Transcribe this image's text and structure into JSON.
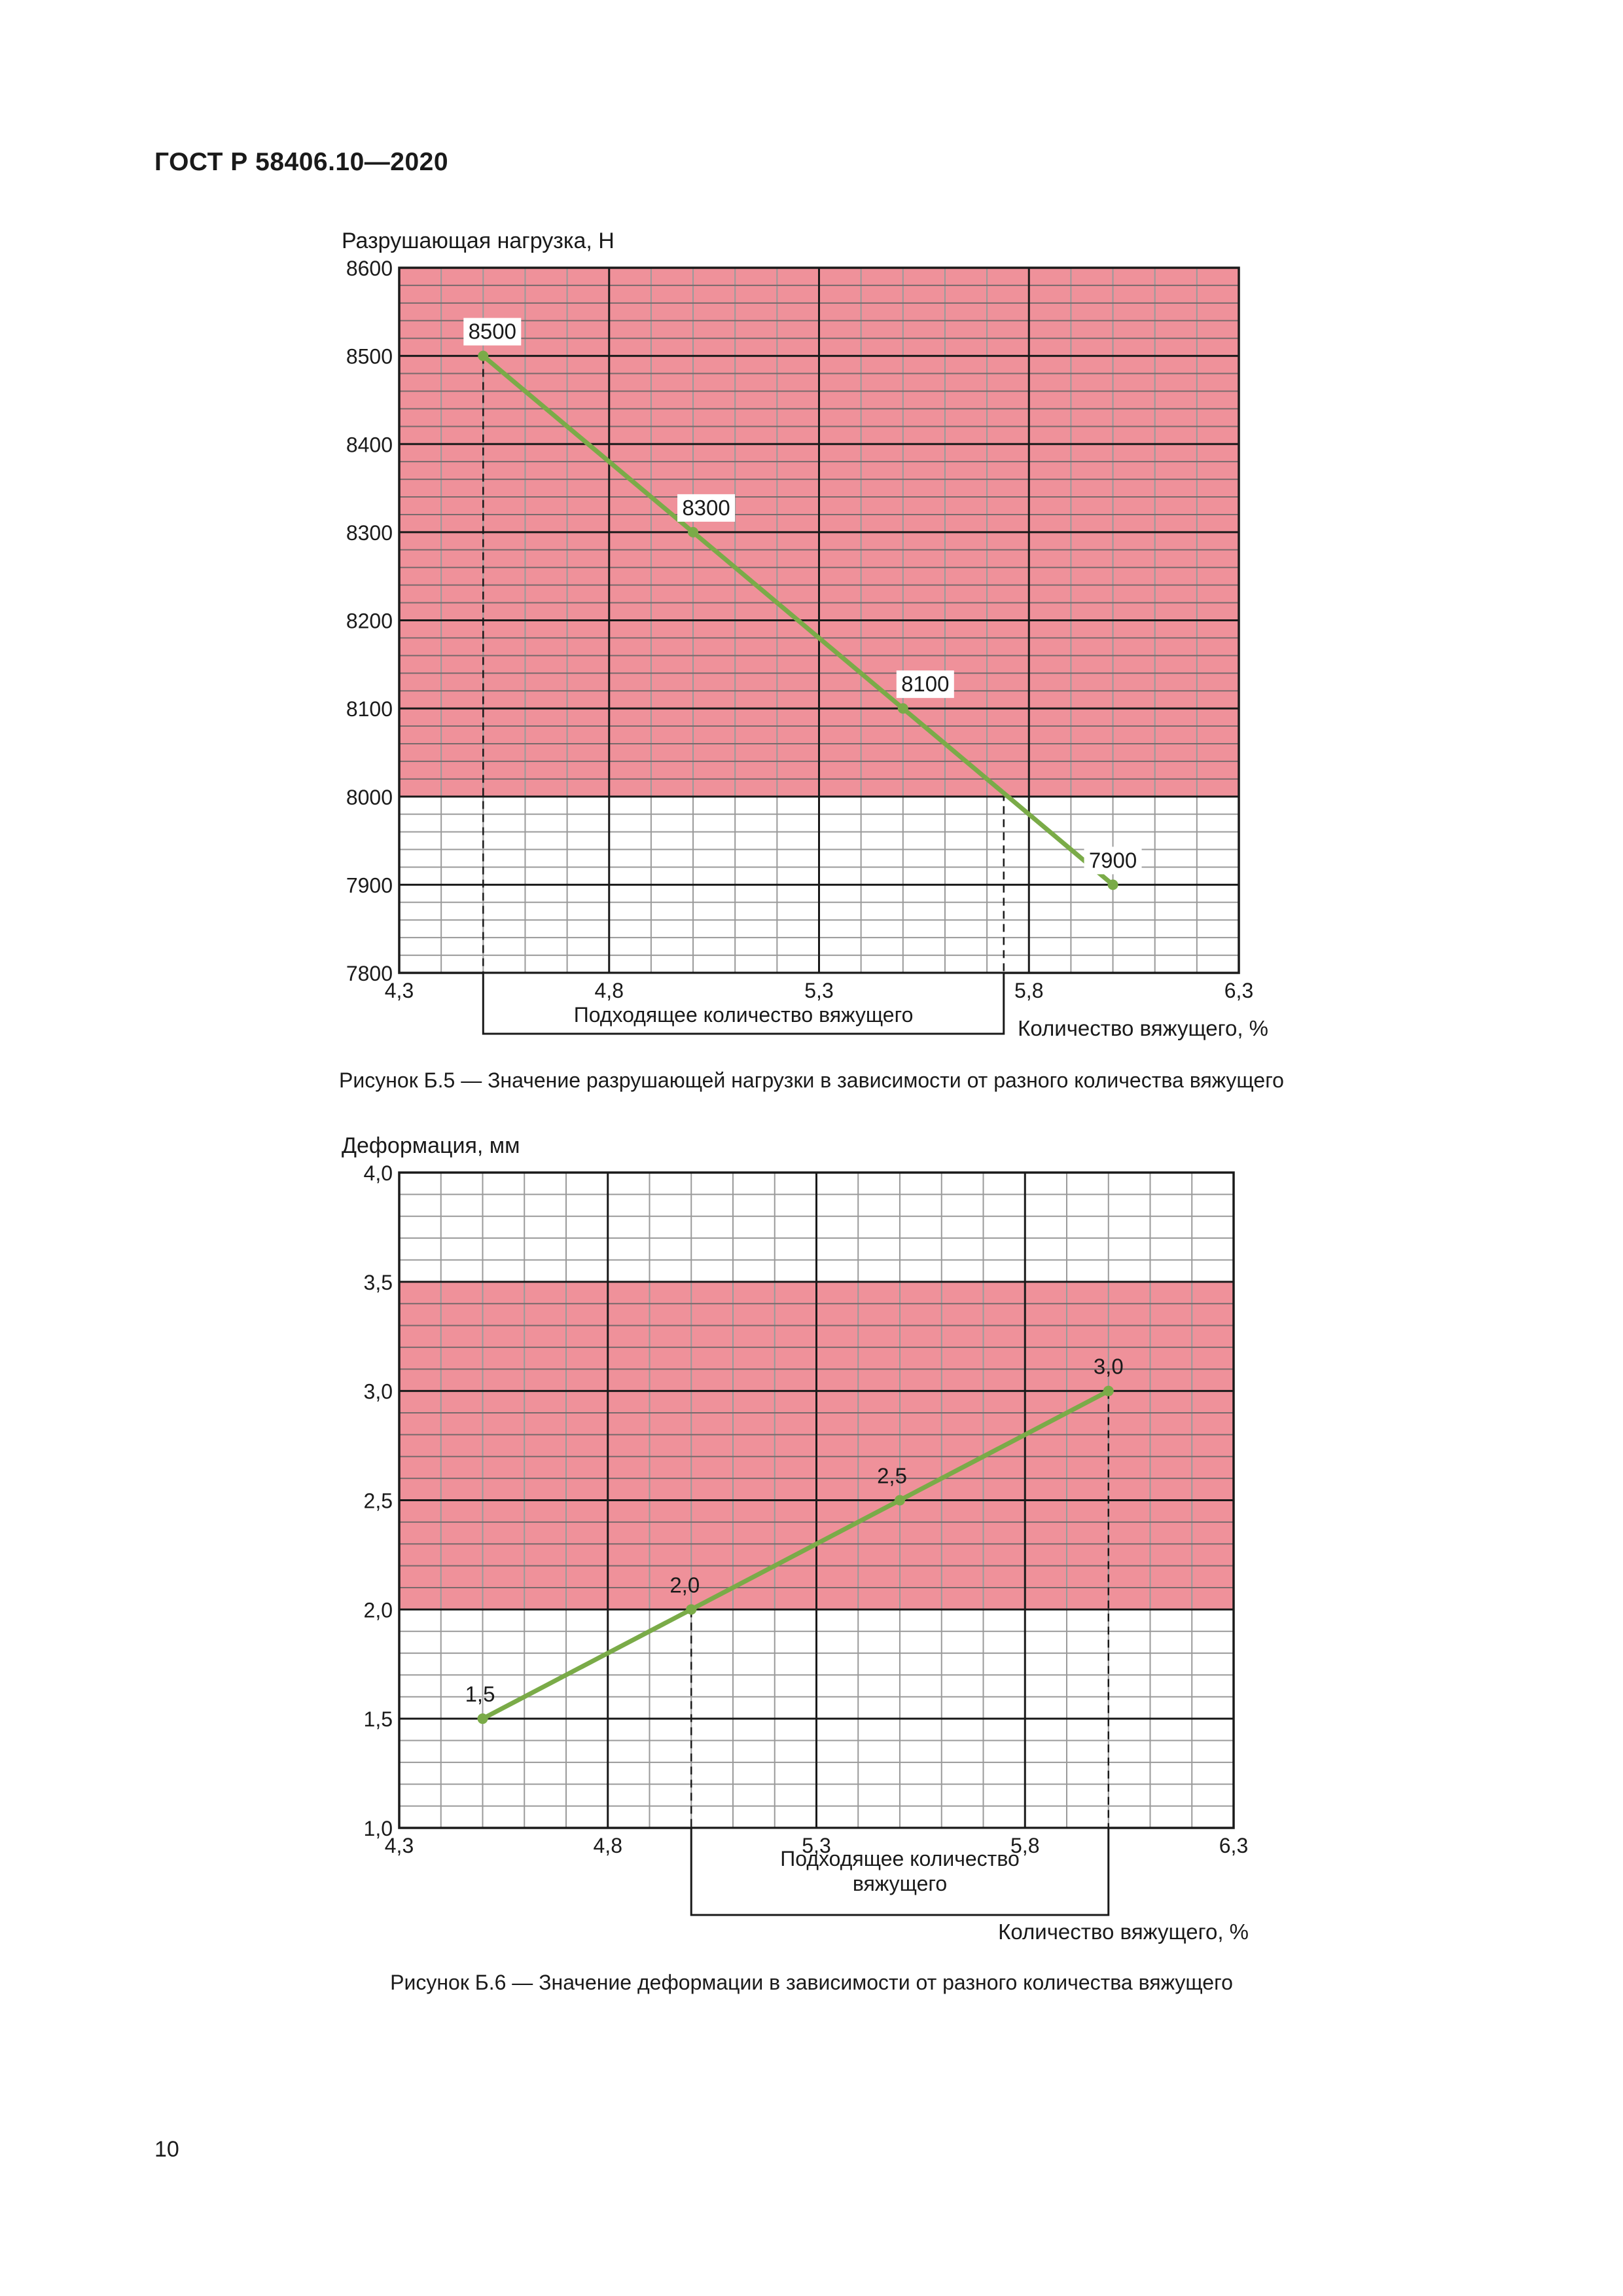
{
  "document": {
    "header": "ГОСТ Р 58406.10—2020",
    "page_number": "10"
  },
  "chart_data": [
    {
      "type": "line",
      "title": "",
      "ylabel": "Разрушающая нагрузка, Н",
      "xlabel": "Количество вяжущего, %",
      "range_label": "Подходящее количество вяжущего",
      "caption": "Рисунок Б.5 — Значение разрушающей нагрузки в зависимости от разного количества вяжущего",
      "xlim": [
        4.3,
        6.3
      ],
      "ylim": [
        7800,
        8600
      ],
      "x_ticks": [
        4.3,
        4.8,
        5.3,
        5.8,
        6.3
      ],
      "x_tick_labels": [
        "4,3",
        "4,8",
        "5,3",
        "5,8",
        "6,3"
      ],
      "y_ticks": [
        7800,
        7900,
        8000,
        8100,
        8200,
        8300,
        8400,
        8500,
        8600
      ],
      "y_tick_labels": [
        "7800",
        "7900",
        "8000",
        "8100",
        "8200",
        "8300",
        "8400",
        "8500",
        "8600"
      ],
      "shaded_band": [
        8000,
        8600
      ],
      "suitable_range": [
        4.5,
        5.74
      ],
      "series": [
        {
          "name": "Разрушающая нагрузка",
          "x": [
            4.5,
            5.0,
            5.5,
            6.0
          ],
          "y": [
            8500,
            8300,
            8100,
            7900
          ],
          "labels": [
            "8500",
            "8300",
            "8100",
            "7900"
          ]
        }
      ],
      "colors": {
        "band": "#ef919a",
        "line": "#7aab48",
        "major_grid": "#1a1a1a",
        "minor_grid_band": "#7a6a6c",
        "minor_grid_white": "#9a9a9a"
      }
    },
    {
      "type": "line",
      "title": "",
      "ylabel": "Деформация, мм",
      "xlabel": "Количество вяжущего, %",
      "range_label": [
        "Подходящее количество",
        "вяжущего"
      ],
      "caption": "Рисунок Б.6 — Значение деформации в зависимости от разного количества вяжущего",
      "xlim": [
        4.3,
        6.3
      ],
      "ylim": [
        1.0,
        4.0
      ],
      "x_ticks": [
        4.3,
        4.8,
        5.3,
        5.8,
        6.3
      ],
      "x_tick_labels": [
        "4,3",
        "4,8",
        "5,3",
        "5,8",
        "6,3"
      ],
      "y_ticks": [
        1.0,
        1.5,
        2.0,
        2.5,
        3.0,
        3.5,
        4.0
      ],
      "y_tick_labels": [
        "1,0",
        "1,5",
        "2,0",
        "2,5",
        "3,0",
        "3,5",
        "4,0"
      ],
      "shaded_band": [
        2.0,
        3.5
      ],
      "suitable_range": [
        5.0,
        6.0
      ],
      "series": [
        {
          "name": "Деформация",
          "x": [
            4.5,
            5.0,
            5.5,
            6.0
          ],
          "y": [
            1.5,
            2.0,
            2.5,
            3.0
          ],
          "labels": [
            "1,5",
            "2,0",
            "2,5",
            "3,0"
          ]
        }
      ],
      "colors": {
        "band": "#ef919a",
        "line": "#7aab48",
        "major_grid": "#1a1a1a",
        "minor_grid_band": "#7a6a6c",
        "minor_grid_white": "#9a9a9a"
      }
    }
  ]
}
